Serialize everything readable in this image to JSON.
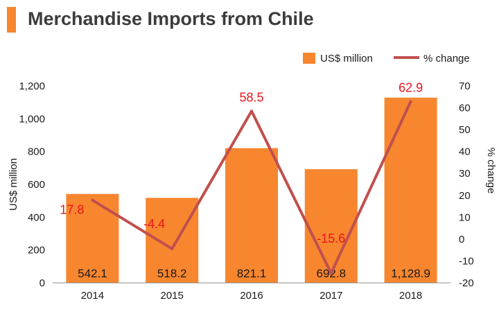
{
  "title": "Merchandise Imports from Chile",
  "colors": {
    "bar": "#f7862f",
    "line": "#c0504d",
    "line_label": "#e8141b",
    "text": "#1a1a1a",
    "axis": "#888888"
  },
  "chart_data": {
    "type": "bar",
    "title": "Merchandise Imports from Chile",
    "categories": [
      "2014",
      "2015",
      "2016",
      "2017",
      "2018"
    ],
    "series": [
      {
        "name": "US$ million",
        "type": "bar",
        "axis": "left",
        "values": [
          542.1,
          518.2,
          821.1,
          692.8,
          1128.9
        ],
        "labels": [
          "542.1",
          "518.2",
          "821.1",
          "692.8",
          "1,128.9"
        ]
      },
      {
        "name": "% change",
        "type": "line",
        "axis": "right",
        "values": [
          17.8,
          -4.4,
          58.5,
          -15.6,
          62.9
        ],
        "labels": [
          "17.8",
          "-4.4",
          "58.5",
          "-15.6",
          "62.9"
        ]
      }
    ],
    "ylabel": "US$ million",
    "ylabel_right": "% change",
    "ylim": [
      0,
      1200
    ],
    "y2lim": [
      -20,
      70
    ],
    "yticks": [
      "0",
      "200",
      "400",
      "600",
      "800",
      "1,000",
      "1,200"
    ],
    "y2ticks": [
      "-20",
      "-10",
      "0",
      "10",
      "20",
      "30",
      "40",
      "50",
      "60",
      "70"
    ],
    "legend": {
      "position": "top-right",
      "items": [
        "US$ million",
        "% change"
      ]
    },
    "grid": false
  }
}
